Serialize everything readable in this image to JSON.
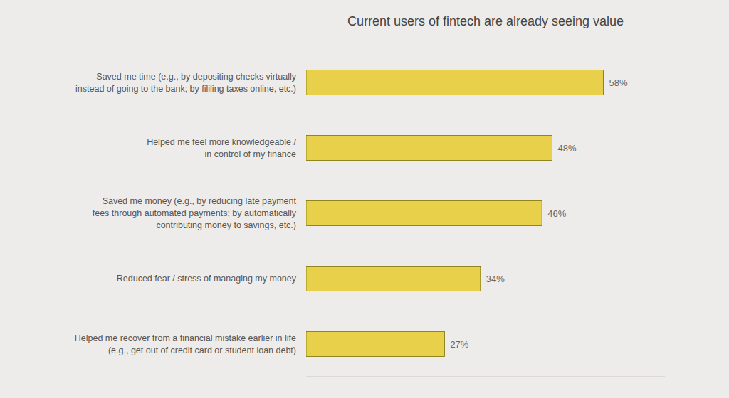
{
  "chart_data": {
    "type": "bar",
    "orientation": "horizontal",
    "title": "Current users of fintech are already seeing value",
    "categories": [
      "Saved me time (e.g., by depositing checks virtually\ninstead of going to the bank; by fililing taxes online, etc.)",
      "Helped me feel more knowledgeable /\nin control of my finance",
      "Saved me money (e.g., by reducing late payment\nfees through automated payments; by automatically\ncontributing money to savings, etc.)",
      "Reduced fear / stress of managing my money",
      "Helped me recover from a financial mistake earlier in life\n(e.g., get out of credit card or student loan debt)"
    ],
    "values": [
      58,
      48,
      46,
      34,
      27
    ],
    "value_labels": [
      "58%",
      "48%",
      "46%",
      "34%",
      "27%"
    ],
    "data_labels": true,
    "color": "#E8D04A",
    "xlim": [
      0,
      70
    ],
    "grid": false,
    "tick_labels": "y"
  }
}
